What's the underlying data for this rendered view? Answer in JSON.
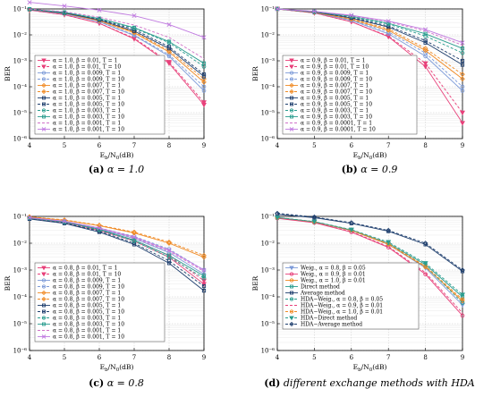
{
  "captions": [
    {
      "label": "(a)",
      "text": " α = 1.0"
    },
    {
      "label": "(b)",
      "text": " α = 0.9"
    },
    {
      "label": "(c)",
      "text": " α = 0.8"
    },
    {
      "label": "(d)",
      "text": " different exchange methods with HDA"
    }
  ],
  "chart_data": [
    {
      "type": "line",
      "panel": "a",
      "xlabel": "E_b/N_0(dB)",
      "ylabel": "BER",
      "xlim": [
        4,
        9
      ],
      "ylim_log10": [
        -6,
        -1
      ],
      "grid": true,
      "legend_position": "bottom-left",
      "x": [
        4,
        5,
        6,
        7,
        8,
        9
      ],
      "x_ticks": [
        "4",
        "5",
        "6",
        "7",
        "8",
        "9"
      ],
      "y_ticks": [
        "10⁻⁶",
        "10⁻⁵",
        "10⁻⁴",
        "10⁻³",
        "10⁻²",
        "10⁻¹"
      ],
      "series": [
        {
          "name": "α = 1.0, β = 0.01, T = 1",
          "color": "#e8407a",
          "marker": "triangle-down",
          "dash": "solid",
          "values": [
            0.09,
            0.06,
            0.028,
            0.007,
            0.0008,
            2e-05
          ]
        },
        {
          "name": "α = 1.0, β = 0.01, T = 10",
          "color": "#e8407a",
          "marker": "triangle-down",
          "dash": "dashed",
          "values": [
            0.09,
            0.06,
            0.028,
            0.0075,
            0.0009,
            2.5e-05
          ]
        },
        {
          "name": "α = 1.0, β = 0.009, T = 1",
          "color": "#7d9bd8",
          "marker": "circle",
          "dash": "solid",
          "values": [
            0.093,
            0.065,
            0.032,
            0.0095,
            0.0015,
            7e-05
          ]
        },
        {
          "name": "α = 1.0, β = 0.009, T = 10",
          "color": "#7d9bd8",
          "marker": "circle",
          "dash": "dashed",
          "values": [
            0.093,
            0.065,
            0.033,
            0.01,
            0.0017,
            0.0001
          ]
        },
        {
          "name": "α = 1.0, β = 0.007, T = 1",
          "color": "#f08a24",
          "marker": "diamond",
          "dash": "solid",
          "values": [
            0.095,
            0.068,
            0.035,
            0.012,
            0.0022,
            0.00015
          ]
        },
        {
          "name": "α = 1.0, β = 0.007, T = 10",
          "color": "#f08a24",
          "marker": "diamond",
          "dash": "dashed",
          "values": [
            0.095,
            0.069,
            0.036,
            0.013,
            0.0025,
            0.0002
          ]
        },
        {
          "name": "α = 1.0, β = 0.005, T = 1",
          "color": "#1f3f6e",
          "marker": "square",
          "dash": "solid",
          "values": [
            0.096,
            0.07,
            0.038,
            0.014,
            0.003,
            0.00025
          ]
        },
        {
          "name": "α = 1.0, β = 0.005, T = 10",
          "color": "#1f3f6e",
          "marker": "square",
          "dash": "dashed",
          "values": [
            0.097,
            0.071,
            0.04,
            0.016,
            0.0035,
            0.0003
          ]
        },
        {
          "name": "α = 1.0, β = 0.003, T = 1",
          "color": "#2a9d8f",
          "marker": "circle",
          "dash": "dashed",
          "values": [
            0.098,
            0.073,
            0.042,
            0.018,
            0.005,
            0.0006
          ]
        },
        {
          "name": "α = 1.0, β = 0.003, T = 10",
          "color": "#2a9d8f",
          "marker": "square",
          "dash": "solid",
          "values": [
            0.098,
            0.074,
            0.043,
            0.019,
            0.0055,
            0.0008
          ]
        },
        {
          "name": "α = 1.0, β = 0.001, T = 1",
          "color": "#d070c8",
          "marker": "none",
          "dash": "dashed",
          "values": [
            0.099,
            0.078,
            0.048,
            0.024,
            0.008,
            0.0012
          ]
        },
        {
          "name": "α = 1.0, β = 0.001, T = 10",
          "color": "#c07ae0",
          "marker": "x",
          "dash": "solid",
          "values": [
            0.18,
            0.13,
            0.09,
            0.055,
            0.025,
            0.008
          ]
        }
      ]
    },
    {
      "type": "line",
      "panel": "b",
      "xlabel": "E_b/N_0(dB)",
      "ylabel": "BER",
      "xlim": [
        4,
        9
      ],
      "ylim_log10": [
        -6,
        -1
      ],
      "grid": true,
      "legend_position": "bottom-left",
      "x": [
        4,
        5,
        6,
        7,
        8,
        9
      ],
      "x_ticks": [
        "4",
        "5",
        "6",
        "7",
        "8",
        "9"
      ],
      "y_ticks": [
        "10⁻⁶",
        "10⁻⁵",
        "10⁻⁴",
        "10⁻³",
        "10⁻²",
        "10⁻¹"
      ],
      "series": [
        {
          "name": "α = 0.9, β = 0.01, T = 1",
          "color": "#e8407a",
          "marker": "triangle-down",
          "dash": "solid",
          "values": [
            0.1,
            0.07,
            0.032,
            0.0085,
            0.0006,
            4e-06
          ]
        },
        {
          "name": "α = 0.9, β = 0.01, T = 10",
          "color": "#e8407a",
          "marker": "triangle-down",
          "dash": "dashed",
          "values": [
            0.1,
            0.07,
            0.032,
            0.009,
            0.0008,
            1e-05
          ]
        },
        {
          "name": "α = 0.9, β = 0.009, T = 1",
          "color": "#7d9bd8",
          "marker": "circle",
          "dash": "solid",
          "values": [
            0.1,
            0.072,
            0.036,
            0.011,
            0.0015,
            7e-05
          ]
        },
        {
          "name": "α = 0.9, β = 0.009, T = 10",
          "color": "#7d9bd8",
          "marker": "circle",
          "dash": "dashed",
          "values": [
            0.1,
            0.073,
            0.038,
            0.013,
            0.002,
            0.0001
          ]
        },
        {
          "name": "α = 0.9, β = 0.007, T = 1",
          "color": "#f08a24",
          "marker": "diamond",
          "dash": "solid",
          "values": [
            0.1,
            0.074,
            0.04,
            0.015,
            0.0025,
            0.0002
          ]
        },
        {
          "name": "α = 0.9, β = 0.007, T = 10",
          "color": "#f08a24",
          "marker": "diamond",
          "dash": "dashed",
          "values": [
            0.1,
            0.075,
            0.042,
            0.017,
            0.003,
            0.0003
          ]
        },
        {
          "name": "α = 0.9, β = 0.005, T = 1",
          "color": "#1f3f6e",
          "marker": "square",
          "dash": "solid",
          "values": [
            0.1,
            0.076,
            0.045,
            0.02,
            0.005,
            0.0007
          ]
        },
        {
          "name": "α = 0.9, β = 0.005, T = 10",
          "color": "#1f3f6e",
          "marker": "square",
          "dash": "dashed",
          "values": [
            0.1,
            0.077,
            0.047,
            0.022,
            0.006,
            0.001
          ]
        },
        {
          "name": "α = 0.9, β = 0.003, T = 1",
          "color": "#2a9d8f",
          "marker": "circle",
          "dash": "dashed",
          "values": [
            0.1,
            0.078,
            0.05,
            0.026,
            0.009,
            0.002
          ]
        },
        {
          "name": "α = 0.9, β = 0.003, T = 10",
          "color": "#2a9d8f",
          "marker": "square",
          "dash": "solid",
          "values": [
            0.1,
            0.079,
            0.052,
            0.028,
            0.011,
            0.003
          ]
        },
        {
          "name": "α = 0.9, β = 0.0001, T = 1",
          "color": "#d070c8",
          "marker": "none",
          "dash": "dashed",
          "values": [
            0.1,
            0.08,
            0.055,
            0.032,
            0.014,
            0.004
          ]
        },
        {
          "name": "α = 0.9, β = 0.0001, T = 10",
          "color": "#c07ae0",
          "marker": "x",
          "dash": "solid",
          "values": [
            0.1,
            0.081,
            0.057,
            0.034,
            0.016,
            0.005
          ]
        }
      ]
    },
    {
      "type": "line",
      "panel": "c",
      "xlabel": "E_b/N_0(dB)",
      "ylabel": "BER",
      "xlim": [
        4,
        9
      ],
      "ylim_log10": [
        -6,
        -1
      ],
      "grid": true,
      "legend_position": "bottom-left",
      "x": [
        4,
        5,
        6,
        7,
        8,
        9
      ],
      "x_ticks": [
        "4",
        "5",
        "6",
        "7",
        "8",
        "9"
      ],
      "y_ticks": [
        "10⁻⁶",
        "10⁻⁵",
        "10⁻⁴",
        "10⁻³",
        "10⁻²",
        "10⁻¹"
      ],
      "series": [
        {
          "name": "α = 0.8, β = 0.01, T = 1",
          "color": "#e8407a",
          "marker": "triangle-down",
          "dash": "solid",
          "values": [
            0.085,
            0.06,
            0.03,
            0.012,
            0.003,
            0.0003
          ]
        },
        {
          "name": "α = 0.8, β = 0.01, T = 10",
          "color": "#e8407a",
          "marker": "triangle-down",
          "dash": "dashed",
          "values": [
            0.087,
            0.062,
            0.032,
            0.013,
            0.0035,
            0.0004
          ]
        },
        {
          "name": "α = 0.8, β = 0.009, T = 1",
          "color": "#7d9bd8",
          "marker": "circle",
          "dash": "solid",
          "values": [
            0.088,
            0.063,
            0.034,
            0.015,
            0.0045,
            0.0007
          ]
        },
        {
          "name": "α = 0.8, β = 0.009, T = 10",
          "color": "#7d9bd8",
          "marker": "circle",
          "dash": "dashed",
          "values": [
            0.09,
            0.066,
            0.037,
            0.018,
            0.006,
            0.001
          ]
        },
        {
          "name": "α = 0.8, β = 0.007, T = 1",
          "color": "#f08a24",
          "marker": "diamond",
          "dash": "solid",
          "values": [
            0.095,
            0.072,
            0.045,
            0.024,
            0.01,
            0.003
          ]
        },
        {
          "name": "α = 0.8, β = 0.007, T = 10",
          "color": "#f08a24",
          "marker": "diamond",
          "dash": "dashed",
          "values": [
            0.097,
            0.074,
            0.047,
            0.026,
            0.011,
            0.0035
          ]
        },
        {
          "name": "α = 0.8, β = 0.005, T = 1",
          "color": "#1f3f6e",
          "marker": "square",
          "dash": "solid",
          "values": [
            0.08,
            0.055,
            0.026,
            0.009,
            0.0018,
            0.00017
          ]
        },
        {
          "name": "α = 0.8, β = 0.005, T = 10",
          "color": "#1f3f6e",
          "marker": "square",
          "dash": "dashed",
          "values": [
            0.082,
            0.057,
            0.028,
            0.01,
            0.0022,
            0.00025
          ]
        },
        {
          "name": "α = 0.8, β = 0.003, T = 1",
          "color": "#2a9d8f",
          "marker": "circle",
          "dash": "dashed",
          "values": [
            0.086,
            0.061,
            0.031,
            0.012,
            0.003,
            0.0005
          ]
        },
        {
          "name": "α = 0.8, β = 0.003, T = 10",
          "color": "#2a9d8f",
          "marker": "square",
          "dash": "solid",
          "values": [
            0.087,
            0.062,
            0.033,
            0.013,
            0.0035,
            0.0006
          ]
        },
        {
          "name": "α = 0.8, β = 0.001, T = 1",
          "color": "#d070c8",
          "marker": "none",
          "dash": "dashed",
          "values": [
            0.089,
            0.065,
            0.036,
            0.016,
            0.005,
            0.0009
          ]
        },
        {
          "name": "α = 0.8, β = 0.001, T = 10",
          "color": "#c07ae0",
          "marker": "x",
          "dash": "solid",
          "values": [
            0.09,
            0.066,
            0.037,
            0.017,
            0.0055,
            0.001
          ]
        }
      ]
    },
    {
      "type": "line",
      "panel": "d",
      "xlabel": "E_b/N_0(dB)",
      "ylabel": "BER",
      "xlim": [
        4,
        9
      ],
      "ylim_log10": [
        -6,
        -1
      ],
      "grid": true,
      "legend_position": "bottom-left",
      "x": [
        4,
        5,
        6,
        7,
        8,
        9
      ],
      "x_ticks": [
        "4",
        "5",
        "6",
        "7",
        "8",
        "9"
      ],
      "y_ticks": [
        "10⁻⁶",
        "10⁻⁵",
        "10⁻⁴",
        "10⁻³",
        "10⁻²",
        "10⁻¹"
      ],
      "series": [
        {
          "name": "Weig., α = 0.8, β = 0.05",
          "color": "#7d9bd8",
          "marker": "triangle-down",
          "dash": "solid",
          "values": [
            0.09,
            0.062,
            0.03,
            0.009,
            0.0012,
            5e-05
          ]
        },
        {
          "name": "Weig., α = 0.9, β = 0.01",
          "color": "#e8407a",
          "marker": "circle",
          "dash": "solid",
          "values": [
            0.085,
            0.058,
            0.026,
            0.007,
            0.0007,
            2e-05
          ]
        },
        {
          "name": "Weig., α = 1.0, β = 0.01",
          "color": "#f08a24",
          "marker": "circle",
          "dash": "solid",
          "values": [
            0.09,
            0.062,
            0.03,
            0.009,
            0.0013,
            7e-05
          ]
        },
        {
          "name": "Direct method",
          "color": "#2a9d8f",
          "marker": "square",
          "dash": "solid",
          "values": [
            0.09,
            0.063,
            0.031,
            0.01,
            0.0016,
            0.0001
          ]
        },
        {
          "name": "Average method",
          "color": "#1f3f6e",
          "marker": "square",
          "dash": "solid",
          "values": [
            0.12,
            0.09,
            0.055,
            0.028,
            0.009,
            0.0009
          ]
        },
        {
          "name": "HDA−Weig., α = 0.8, β = 0.05",
          "color": "#2a9d8f",
          "marker": "circle",
          "dash": "dashed",
          "values": [
            0.091,
            0.063,
            0.031,
            0.0095,
            0.0014,
            6e-05
          ]
        },
        {
          "name": "HDA−Weig., α = 0.9, β = 0.01",
          "color": "#e8407a",
          "marker": "none",
          "dash": "dashed",
          "values": [
            0.087,
            0.059,
            0.027,
            0.0075,
            0.0008,
            2.5e-05
          ]
        },
        {
          "name": "HDA−Weig., α = 1.0, β = 0.01",
          "color": "#f08a24",
          "marker": "circle",
          "dash": "dashed",
          "values": [
            0.091,
            0.063,
            0.031,
            0.0095,
            0.0014,
            8e-05
          ]
        },
        {
          "name": "HDA−Direct method",
          "color": "#2a9d8f",
          "marker": "triangle-down",
          "dash": "dashed",
          "values": [
            0.091,
            0.064,
            0.032,
            0.011,
            0.0018,
            0.00012
          ]
        },
        {
          "name": "HDA−Average method",
          "color": "#1f3f6e",
          "marker": "diamond",
          "dash": "dashed",
          "values": [
            0.13,
            0.095,
            0.058,
            0.03,
            0.01,
            0.001
          ]
        }
      ]
    }
  ]
}
